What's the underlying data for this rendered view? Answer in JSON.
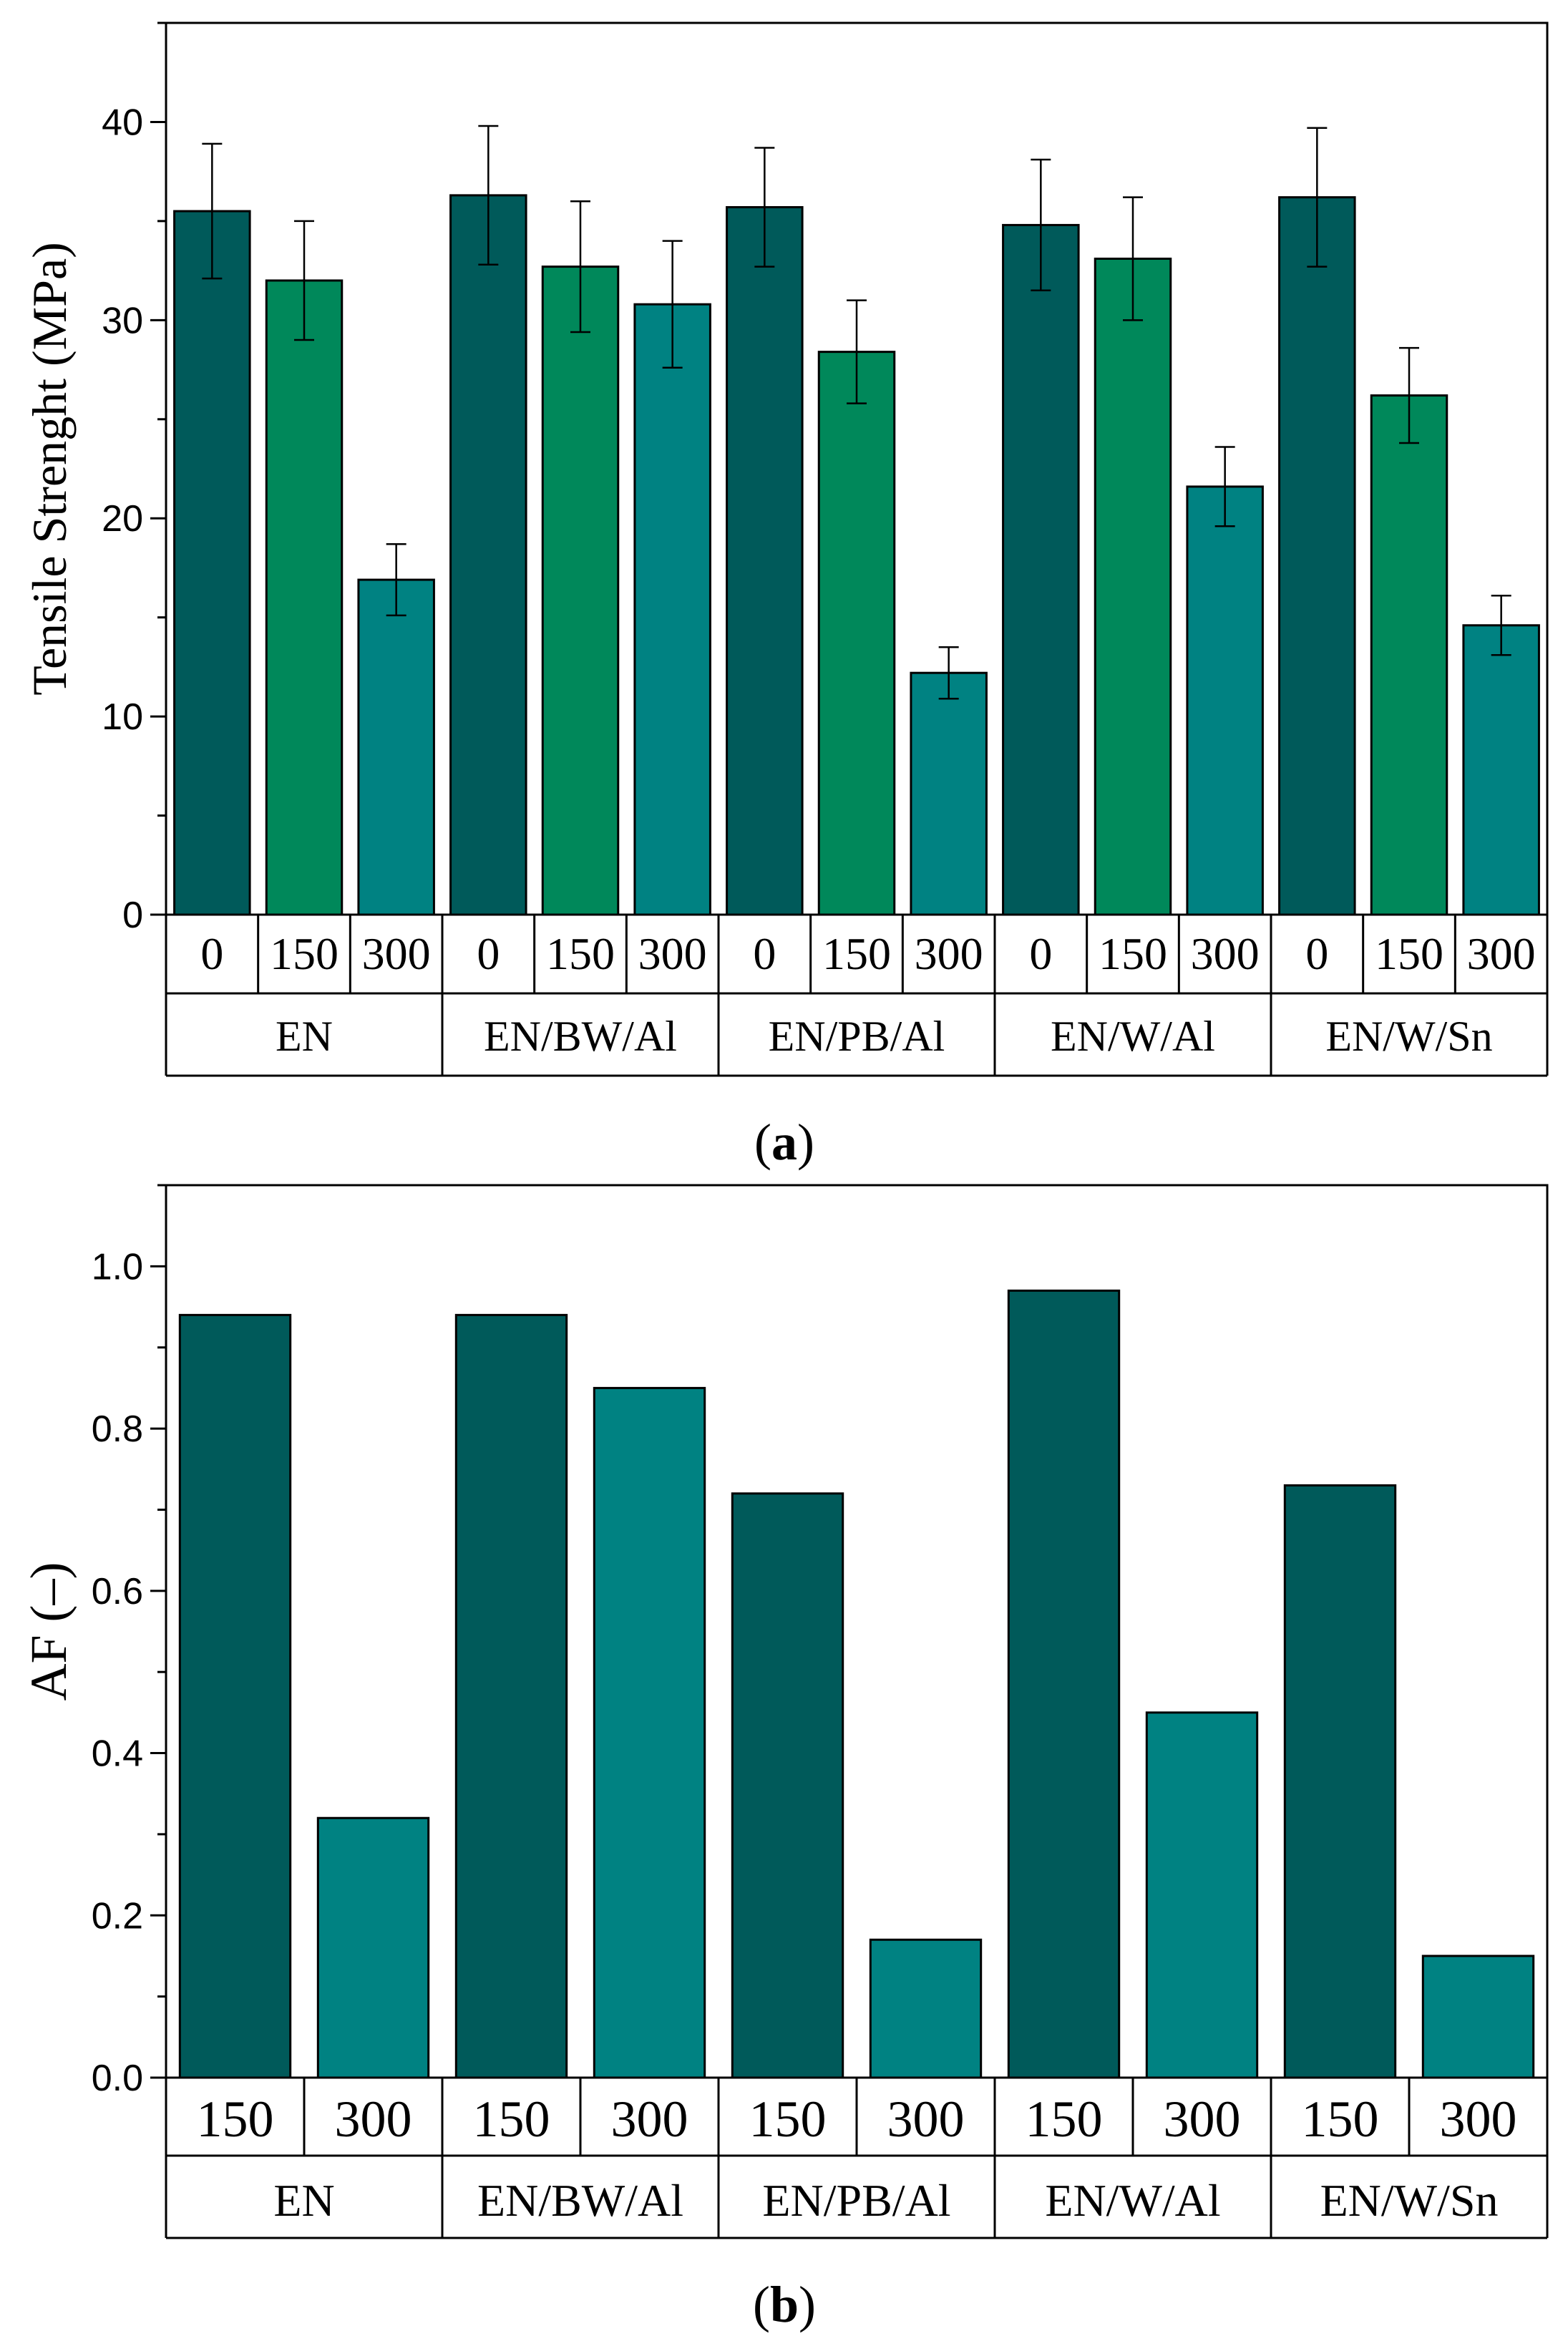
{
  "chart_data": [
    {
      "type": "bar",
      "panel_label": "(a)",
      "panel_letter": "a",
      "ylabel": "Tensile Strenght (MPa)",
      "ylim": [
        0,
        45
      ],
      "yticks": [
        0,
        10,
        20,
        30,
        40
      ],
      "groups": [
        "EN",
        "EN/BW/Al",
        "EN/PB/Al",
        "EN/W/Al",
        "EN/W/Sn"
      ],
      "subcategories": [
        "0",
        "150",
        "300"
      ],
      "series": [
        {
          "name": "0",
          "color": "#005a5a",
          "values": [
            35.5,
            36.3,
            35.7,
            34.8,
            36.2
          ],
          "errors": [
            3.4,
            3.5,
            3.0,
            3.3,
            3.5
          ]
        },
        {
          "name": "150",
          "color": "#00885a",
          "values": [
            32.0,
            32.7,
            28.4,
            33.1,
            26.2
          ],
          "errors": [
            3.0,
            3.3,
            2.6,
            3.1,
            2.4
          ]
        },
        {
          "name": "300",
          "color": "#008282",
          "values": [
            16.9,
            30.8,
            12.2,
            21.6,
            14.6
          ],
          "errors": [
            1.8,
            3.2,
            1.3,
            2.0,
            1.5
          ]
        }
      ]
    },
    {
      "type": "bar",
      "panel_label": "(b)",
      "panel_letter": "b",
      "ylabel": "AF (–)",
      "ylim": [
        0,
        1.1
      ],
      "yticks": [
        "0.0",
        "0.2",
        "0.4",
        "0.6",
        "0.8",
        "1.0"
      ],
      "groups": [
        "EN",
        "EN/BW/Al",
        "EN/PB/Al",
        "EN/W/Al",
        "EN/W/Sn"
      ],
      "subcategories": [
        "150",
        "300"
      ],
      "series": [
        {
          "name": "150",
          "color": "#005a5a",
          "values": [
            0.94,
            0.94,
            0.72,
            0.97,
            0.73
          ]
        },
        {
          "name": "300",
          "color": "#008282",
          "values": [
            0.32,
            0.85,
            0.17,
            0.45,
            0.15
          ]
        }
      ]
    }
  ]
}
